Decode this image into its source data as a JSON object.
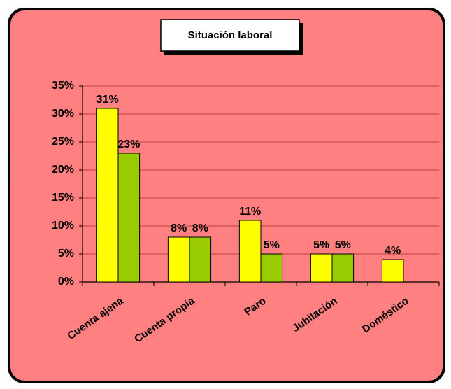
{
  "chart_data": {
    "type": "bar",
    "title": "Situación laboral",
    "categories": [
      "Cuenta ajena",
      "Cuenta propia",
      "Paro",
      "Jubilación",
      "Doméstico"
    ],
    "series": [
      {
        "color": "#ffff00",
        "values": [
          31,
          8,
          11,
          5,
          4
        ],
        "value_labels": [
          "31%",
          "8%",
          "11%",
          "5%",
          "4%"
        ]
      },
      {
        "color": "#99cc00",
        "values": [
          23,
          8,
          5,
          5,
          null
        ],
        "value_labels": [
          "23%",
          "8%",
          "5%",
          "5%",
          null
        ]
      }
    ],
    "ylim": [
      0,
      35
    ],
    "yticks": [
      {
        "value": 0,
        "label": "0%"
      },
      {
        "value": 5,
        "label": "5%"
      },
      {
        "value": 10,
        "label": "10%"
      },
      {
        "value": 15,
        "label": "15%"
      },
      {
        "value": 20,
        "label": "20%"
      },
      {
        "value": 25,
        "label": "25%"
      },
      {
        "value": 30,
        "label": "30%"
      },
      {
        "value": 35,
        "label": "35%"
      }
    ],
    "grid": true
  }
}
